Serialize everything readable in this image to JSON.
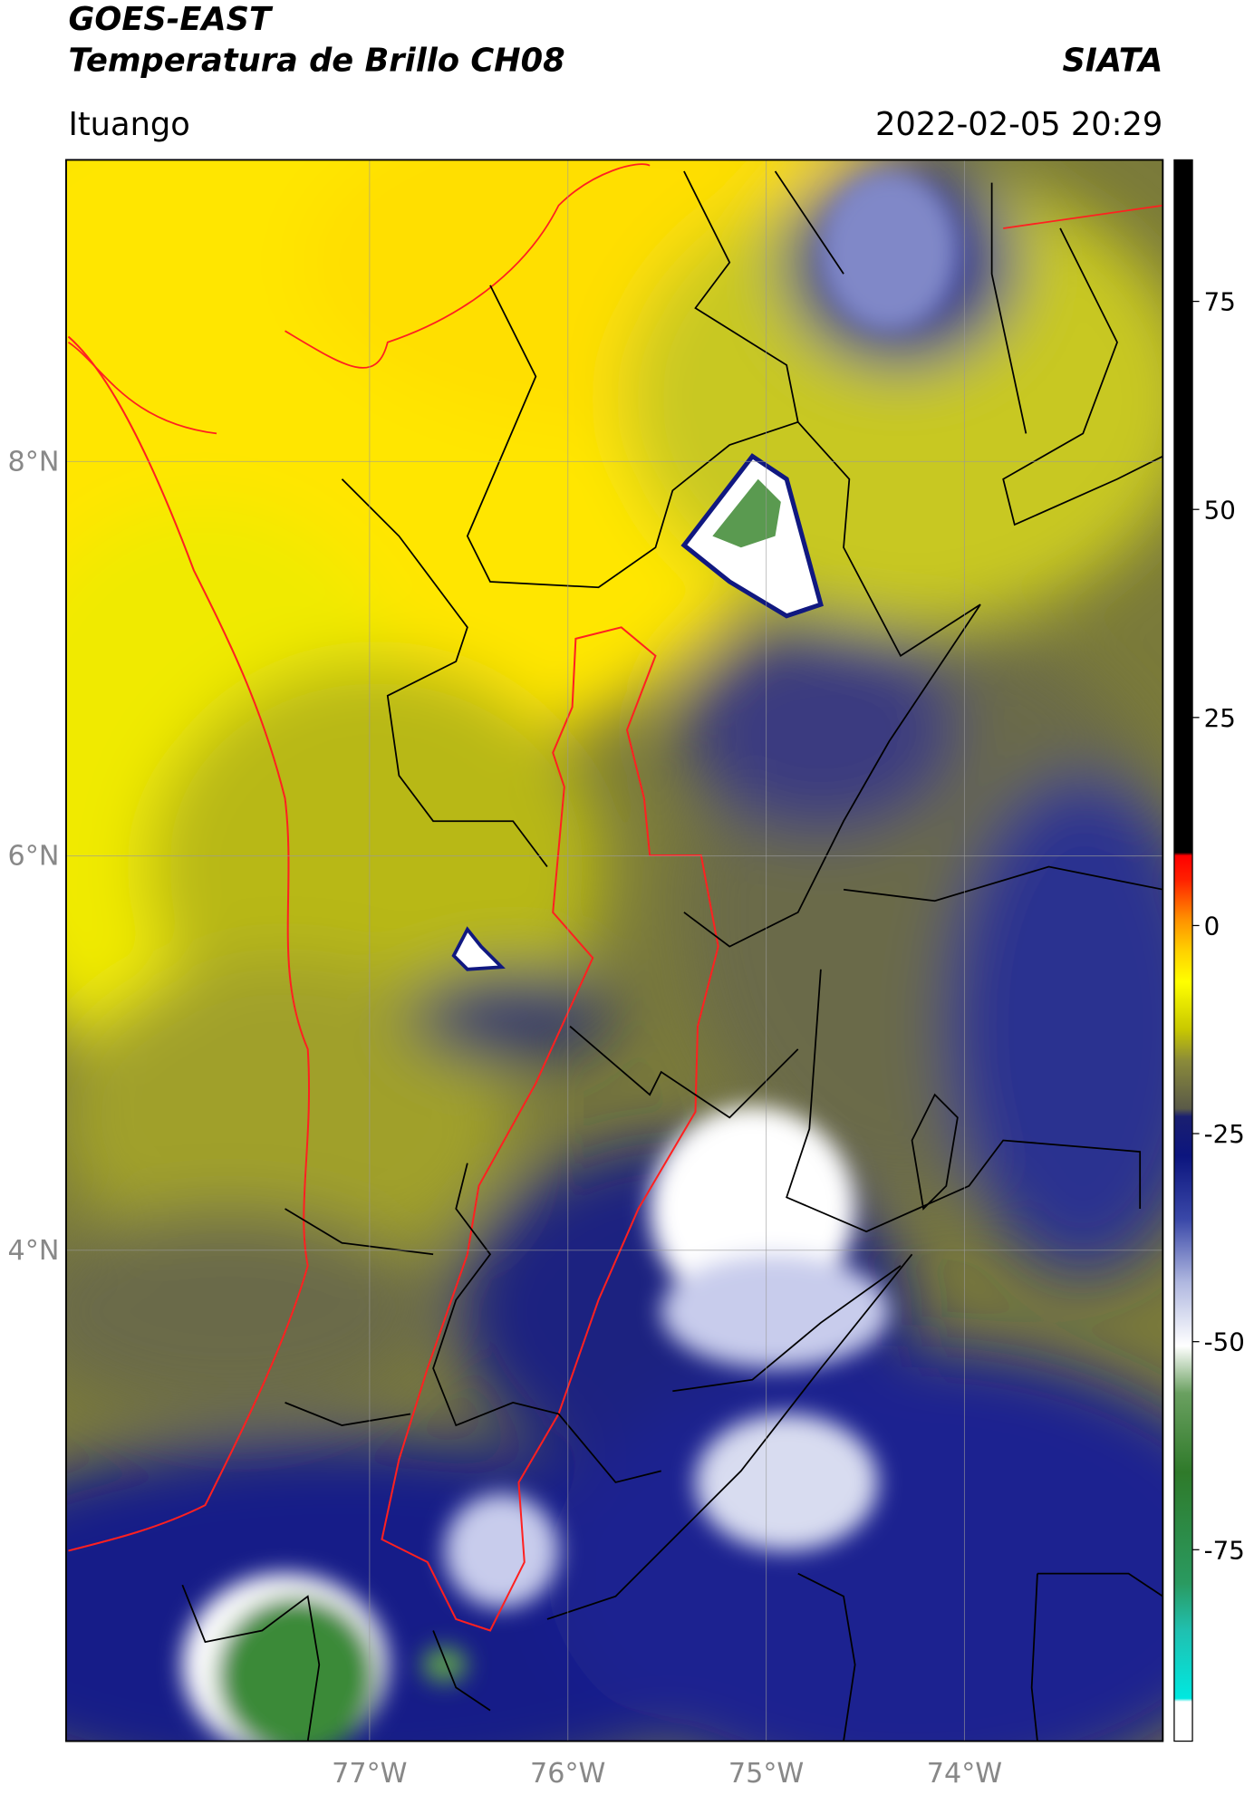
{
  "header": {
    "satellite": "GOES-EAST",
    "product": "Temperatura de Brillo CH08",
    "agency": "SIATA",
    "region": "Ituango",
    "datetime": "2022-02-05 20:29"
  },
  "map": {
    "xlim": [
      -78.53,
      -73.0
    ],
    "ylim": [
      1.51,
      9.53
    ],
    "xticks": [
      {
        "value": -77,
        "label": "77°W"
      },
      {
        "value": -76,
        "label": "76°W"
      },
      {
        "value": -75,
        "label": "75°W"
      },
      {
        "value": -74,
        "label": "74°W"
      }
    ],
    "yticks": [
      {
        "value": 4,
        "label": "4°N"
      },
      {
        "value": 6,
        "label": "6°N"
      },
      {
        "value": 8,
        "label": "8°N"
      }
    ],
    "grid": true
  },
  "colorbar": {
    "lim": [
      -98,
      92
    ],
    "ticks": [
      -75,
      -50,
      -25,
      0,
      25,
      50,
      75
    ]
  }
}
